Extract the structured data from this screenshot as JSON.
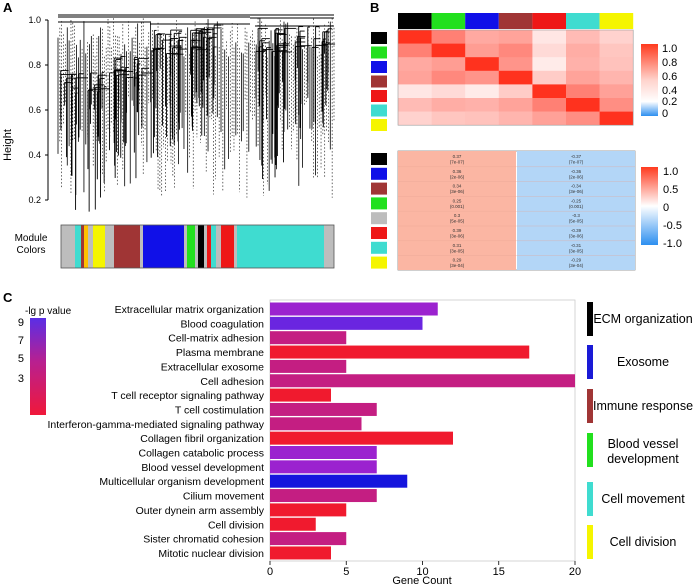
{
  "panels": {
    "a": {
      "label": "A",
      "ylabel": "Height",
      "yticks": [
        "1.0",
        "0.8",
        "0.6",
        "0.4",
        "0.2"
      ],
      "module_colors_label_line1": "Module",
      "module_colors_label_line2": "Colors"
    },
    "b": {
      "label": "B",
      "module_colors": [
        "#000000",
        "#22e01e",
        "#1010e8",
        "#a03535",
        "#ee1717",
        "#3fdcd0",
        "#f5f500"
      ],
      "colorbar_ticks": [
        "1.0",
        "0.8",
        "0.6",
        "0.4",
        "0.2",
        "0"
      ],
      "trait_rows": [
        {
          "color": "#000000",
          "left_value": "0.37",
          "left_p": "(7e-07)",
          "right_value": "-0.37",
          "right_p": "(7e-07)"
        },
        {
          "color": "#1010e8",
          "left_value": "0.36",
          "left_p": "(2e-06)",
          "right_value": "-0.36",
          "right_p": "(2e-06)"
        },
        {
          "color": "#a03535",
          "left_value": "0.34",
          "left_p": "(3e-06)",
          "right_value": "-0.34",
          "right_p": "(3e-06)"
        },
        {
          "color": "#22e01e",
          "left_value": "0.25",
          "left_p": "(0.001)",
          "right_value": "-0.25",
          "right_p": "(0.001)"
        },
        {
          "color": "#bdbdbd",
          "left_value": "0.3",
          "left_p": "(5e-05)",
          "right_value": "-0.3",
          "right_p": "(5e-05)"
        },
        {
          "color": "#ee1717",
          "left_value": "0.39",
          "left_p": "(3e-06)",
          "right_value": "-0.39",
          "right_p": "(3e-06)"
        },
        {
          "color": "#3fdcd0",
          "left_value": "0.31",
          "left_p": "(3e-05)",
          "right_value": "-0.31",
          "right_p": "(3e-05)"
        },
        {
          "color": "#f5f500",
          "left_value": "0.29",
          "left_p": "(3e-04)",
          "right_value": "-0.29",
          "right_p": "(3e-04)"
        }
      ],
      "trait_colorbar_ticks": [
        "1.0",
        "0.5",
        "0",
        "-0.5",
        "-1.0"
      ]
    },
    "c": {
      "label": "C",
      "legend_title": "-lg p value",
      "legend_ticks": [
        "9",
        "7",
        "5",
        "3"
      ],
      "groups": [
        {
          "label": "ECM organization",
          "color": "#000000"
        },
        {
          "label": "Exosome",
          "color": "#1a1ad6"
        },
        {
          "label": "Immune response",
          "color": "#a03535"
        },
        {
          "label_line1": "Blood vessel",
          "label_line2": "development",
          "color": "#22e01e"
        },
        {
          "label": "Cell movement",
          "color": "#3fdcd0"
        },
        {
          "label": "Cell division",
          "color": "#f5f500"
        }
      ]
    }
  },
  "chart_data": [
    {
      "type": "heatmap",
      "panel": "B-top",
      "title": "",
      "modules": [
        "black",
        "green",
        "blue",
        "brown",
        "red",
        "turquoise",
        "yellow"
      ],
      "values": [
        [
          1.0,
          0.62,
          0.42,
          0.45,
          0.12,
          0.33,
          0.22
        ],
        [
          0.62,
          1.0,
          0.48,
          0.58,
          0.18,
          0.4,
          0.28
        ],
        [
          0.42,
          0.48,
          1.0,
          0.52,
          0.1,
          0.38,
          0.3
        ],
        [
          0.45,
          0.58,
          0.52,
          1.0,
          0.25,
          0.45,
          0.36
        ],
        [
          0.12,
          0.18,
          0.1,
          0.25,
          1.0,
          0.62,
          0.46
        ],
        [
          0.33,
          0.4,
          0.38,
          0.45,
          0.62,
          1.0,
          0.55
        ],
        [
          0.22,
          0.28,
          0.3,
          0.36,
          0.46,
          0.55,
          1.0
        ]
      ],
      "range": [
        0,
        1
      ]
    },
    {
      "type": "bar",
      "panel": "C",
      "orientation": "horizontal",
      "title": "",
      "xlabel": "Gene Count",
      "ylabel": "",
      "xlim": [
        0,
        20
      ],
      "xticks": [
        0,
        5,
        10,
        15,
        20
      ],
      "categories": [
        "Extracellular matrix organization",
        "Blood coagulation",
        "Cell-matrix adhesion",
        "Plasma membrane",
        "Extracellular exosome",
        "Cell adhesion",
        "T cell receptor signaling pathway",
        "T cell costimulation",
        "Interferon-gamma-mediated signaling pathway",
        "Collagen fibril organization",
        "Collagen catabolic process",
        "Blood vessel development",
        "Multicellular organism development",
        "Cilium movement",
        "Outer dynein arm assembly",
        "Cell division",
        "Sister chromatid cohesion",
        "Mitotic nuclear division"
      ],
      "values": [
        11,
        10,
        5,
        17,
        5,
        20,
        4,
        7,
        6,
        12,
        7,
        7,
        9,
        7,
        5,
        3,
        5,
        4
      ],
      "neg_log_p": [
        7,
        8,
        4,
        2,
        4,
        4,
        2,
        5,
        4,
        2,
        5,
        5,
        9,
        4,
        2,
        2,
        5,
        2
      ],
      "colors": [
        "#9b22cf",
        "#6a25e0",
        "#c41e82",
        "#f01a2e",
        "#c41e82",
        "#c41e82",
        "#f01a2e",
        "#c41e82",
        "#c41e82",
        "#f01a2e",
        "#9b22cf",
        "#9b22cf",
        "#1515dd",
        "#c41e82",
        "#f01a2e",
        "#f01a2e",
        "#c41e82",
        "#f01a2e"
      ]
    }
  ]
}
